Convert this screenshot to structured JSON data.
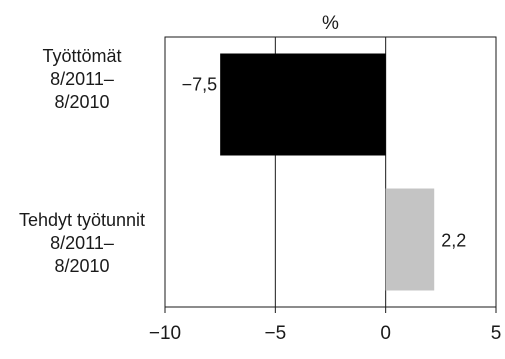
{
  "chart_data": {
    "type": "bar",
    "orientation": "horizontal",
    "unit": "%",
    "categories": [
      [
        "Työttömät",
        "8/2011–",
        "8/2010"
      ],
      [
        "Tehdyt työtunnit",
        "8/2011–",
        "8/2010"
      ]
    ],
    "values": [
      -7.5,
      2.2
    ],
    "value_labels": [
      "−7,5",
      "2,2"
    ],
    "bar_colors": [
      "#000000",
      "#c4c4c4"
    ],
    "xlim": [
      -10,
      5
    ],
    "xticks": [
      -10,
      -5,
      0,
      5
    ],
    "xtick_labels": [
      "−10",
      "−5",
      "0",
      "5"
    ],
    "grid": "vertical",
    "legend": "none"
  }
}
